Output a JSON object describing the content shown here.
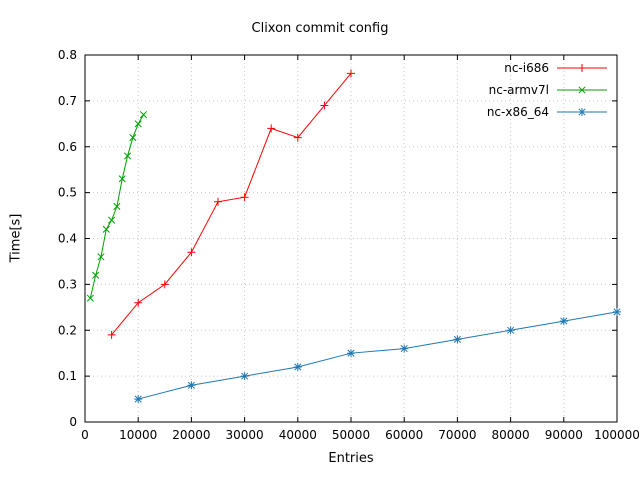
{
  "chart_data": {
    "type": "line",
    "title": "Clixon commit config",
    "xlabel": "Entries",
    "ylabel": "Time[s]",
    "xlim": [
      0,
      100000
    ],
    "ylim": [
      0,
      0.8
    ],
    "x_ticks": [
      0,
      10000,
      20000,
      30000,
      40000,
      50000,
      60000,
      70000,
      80000,
      90000,
      100000
    ],
    "y_ticks": [
      0,
      0.1,
      0.2,
      0.3,
      0.4,
      0.5,
      0.6,
      0.7,
      0.8
    ],
    "grid": true,
    "legend_position": "top-right",
    "colors": {
      "grid": "#c8c8c8",
      "axis": "#000000"
    },
    "series": [
      {
        "name": "nc-i686",
        "color": "#ff0000",
        "marker": "plus",
        "x": [
          5000,
          10000,
          15000,
          20000,
          25000,
          30000,
          35000,
          40000,
          45000,
          50000
        ],
        "y": [
          0.19,
          0.26,
          0.3,
          0.37,
          0.48,
          0.49,
          0.64,
          0.62,
          0.69,
          0.76
        ]
      },
      {
        "name": "nc-armv7l",
        "color": "#00a000",
        "marker": "cross",
        "x": [
          1000,
          2000,
          3000,
          4000,
          5000,
          6000,
          7000,
          8000,
          9000,
          10000,
          11000
        ],
        "y": [
          0.27,
          0.32,
          0.36,
          0.42,
          0.44,
          0.47,
          0.53,
          0.58,
          0.62,
          0.65,
          0.67
        ]
      },
      {
        "name": "nc-x86_64",
        "color": "#1f77b4",
        "marker": "star",
        "x": [
          10000,
          20000,
          30000,
          40000,
          50000,
          60000,
          70000,
          80000,
          90000,
          100000
        ],
        "y": [
          0.05,
          0.08,
          0.1,
          0.12,
          0.15,
          0.16,
          0.18,
          0.2,
          0.22,
          0.24
        ]
      }
    ]
  }
}
